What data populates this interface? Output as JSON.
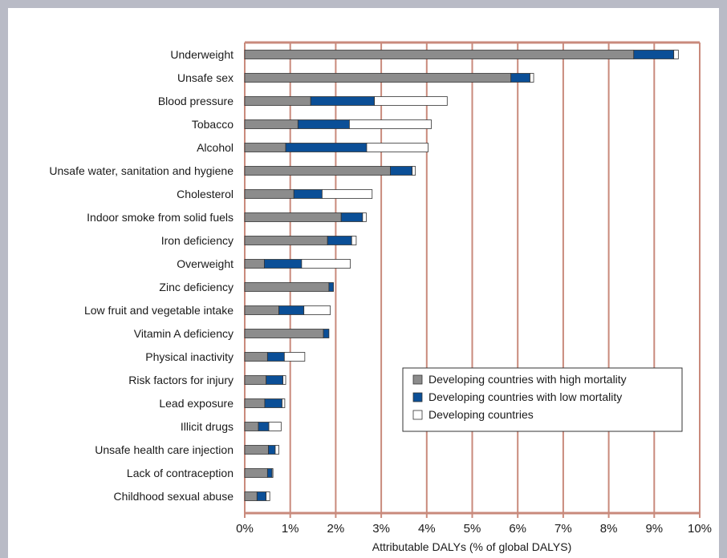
{
  "chart_data": {
    "type": "bar",
    "orientation": "horizontal",
    "stacked": true,
    "title": "",
    "xlabel": "Attributable DALYs (% of global DALYS)",
    "ylabel": "",
    "xlim": [
      0,
      10
    ],
    "x_ticks": [
      "0%",
      "1%",
      "2%",
      "3%",
      "4%",
      "5%",
      "6%",
      "7%",
      "8%",
      "9%",
      "10%"
    ],
    "grid": "vertical",
    "legend_position": "bottom-right",
    "categories": [
      "Underweight",
      "Unsafe sex",
      "Blood pressure",
      "Tobacco",
      "Alcohol",
      "Unsafe water, sanitation and hygiene",
      "Cholesterol",
      "Indoor smoke from solid fuels",
      "Iron deficiency",
      "Overweight",
      "Zinc deficiency",
      "Low fruit and vegetable intake",
      "Vitamin A deficiency",
      "Physical inactivity",
      "Risk factors for injury",
      "Lead exposure",
      "Illicit drugs",
      "Unsafe health care injection",
      "Lack of contraception",
      "Childhood sexual abuse"
    ],
    "series": [
      {
        "name": "Developing countries with high mortality",
        "color": "#8c8c8c",
        "values": [
          8.55,
          5.85,
          1.45,
          1.17,
          0.9,
          3.2,
          1.08,
          2.12,
          1.82,
          0.43,
          1.85,
          0.75,
          1.73,
          0.5,
          0.47,
          0.44,
          0.3,
          0.52,
          0.5,
          0.27
        ]
      },
      {
        "name": "Developing countries with low mortality",
        "color": "#0b4f97",
        "values": [
          0.88,
          0.42,
          1.4,
          1.13,
          1.78,
          0.48,
          0.62,
          0.47,
          0.53,
          0.82,
          0.1,
          0.55,
          0.12,
          0.37,
          0.37,
          0.38,
          0.23,
          0.15,
          0.1,
          0.2
        ]
      },
      {
        "name": "Developing countries",
        "color": "#ffffff",
        "values": [
          0.1,
          0.08,
          1.6,
          1.8,
          1.35,
          0.07,
          1.1,
          0.08,
          0.1,
          1.07,
          0.0,
          0.58,
          0.0,
          0.45,
          0.06,
          0.06,
          0.27,
          0.08,
          0.02,
          0.08
        ]
      }
    ]
  },
  "colors": {
    "frame_background": "#b9bbc6",
    "grid": "#c98a7c",
    "bar_outline": "#333333"
  }
}
